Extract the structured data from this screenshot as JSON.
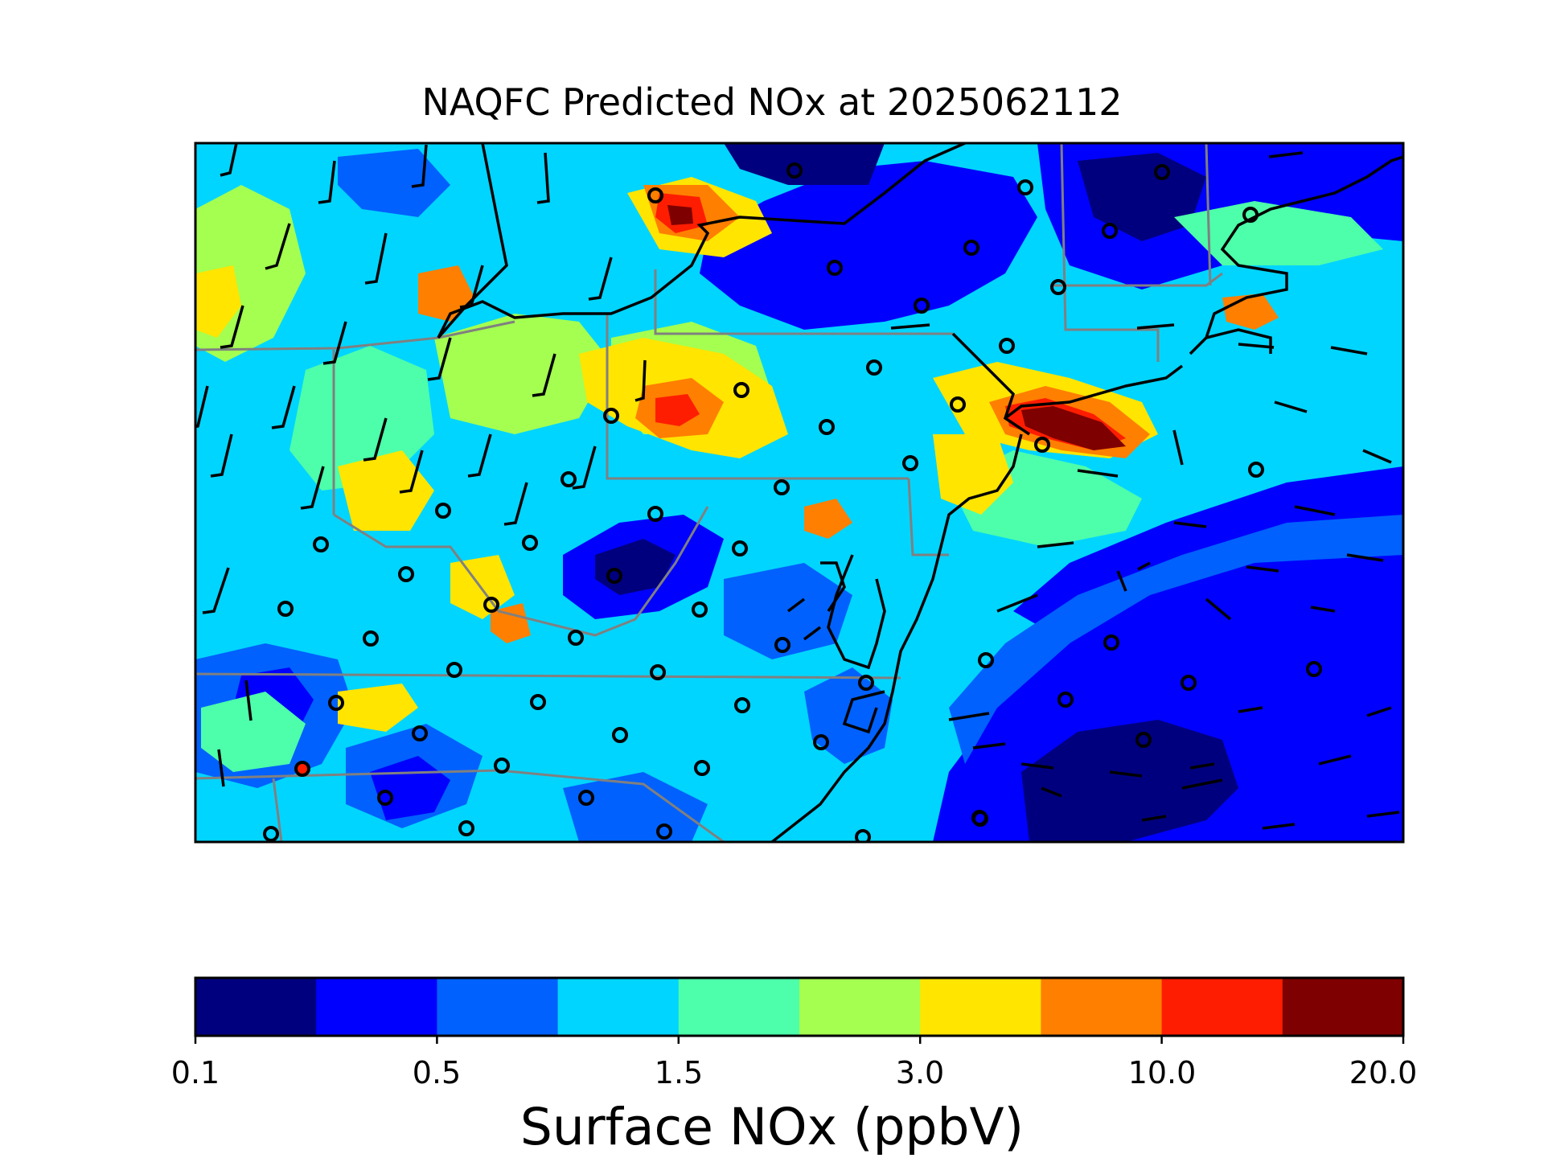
{
  "title": "NAQFC Predicted NOx at 2025062112",
  "colorbar": {
    "label": "Surface NOx (ppbV)",
    "colors": [
      "#00007f",
      "#0000fe",
      "#0061fe",
      "#00d5ff",
      "#4dffaa",
      "#a4ff50",
      "#ffe500",
      "#ff7f00",
      "#fe1d00",
      "#7f0000"
    ],
    "tick_labels": [
      "0.1",
      "0.5",
      "1.5",
      "3.0",
      "10.0",
      "20.0"
    ],
    "tick_bins": [
      0,
      2,
      4,
      6,
      8,
      10
    ]
  },
  "map_legend": {
    "background_level": "1.0",
    "coastline_color": "#000000",
    "state_boundary_color": "#808080"
  }
}
